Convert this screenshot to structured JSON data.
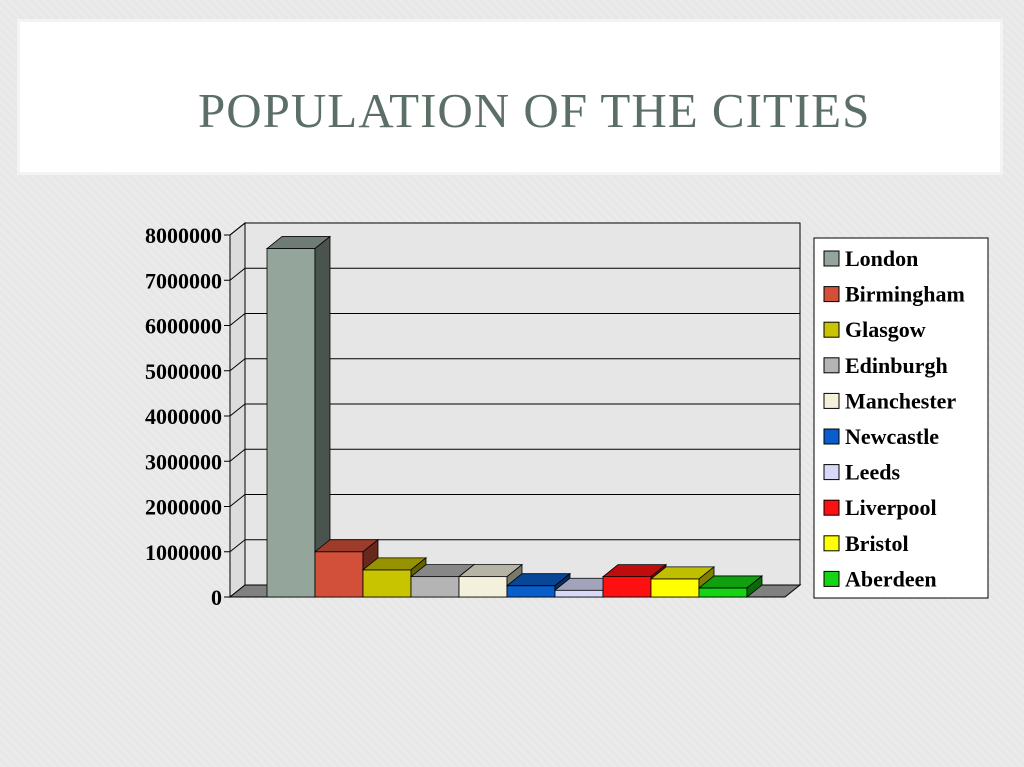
{
  "slide": {
    "title": "POPULATION OF THE CITIES"
  },
  "chart_data": {
    "type": "bar",
    "title": "",
    "xlabel": "",
    "ylabel": "",
    "ylim": [
      0,
      8000000
    ],
    "yticks": [
      "0",
      "1000000",
      "2000000",
      "3000000",
      "4000000",
      "5000000",
      "6000000",
      "7000000",
      "8000000"
    ],
    "grid": true,
    "legend_position": "right",
    "categories": [
      "London",
      "Birmingham",
      "Glasgow",
      "Edinburgh",
      "Manchester",
      "Newcastle",
      "Leeds",
      "Liverpool",
      "Bristol",
      "Aberdeen"
    ],
    "values": [
      7700000,
      1000000,
      600000,
      450000,
      450000,
      250000,
      150000,
      450000,
      400000,
      200000
    ],
    "colors": [
      "#94a59c",
      "#d2503a",
      "#c9c400",
      "#b4b4b4",
      "#f3f1dc",
      "#0a5ecb",
      "#d8d8f8",
      "#ff1010",
      "#ffff00",
      "#14d414"
    ]
  }
}
